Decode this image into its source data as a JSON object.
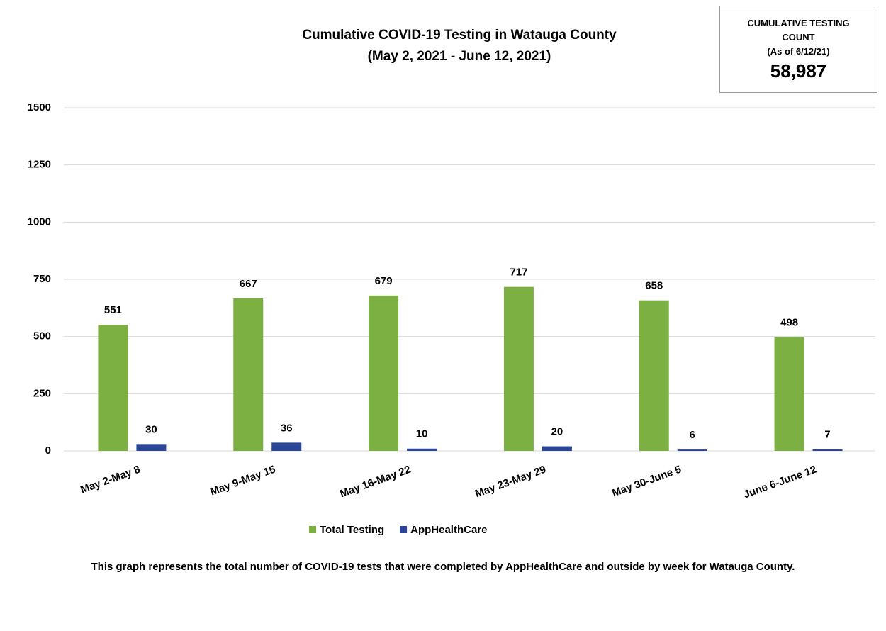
{
  "chart_data": {
    "type": "bar",
    "title": "Cumulative COVID-19 Testing in Watauga County",
    "subtitle": "(May 2, 2021 - June 12, 2021)",
    "summary": {
      "label": "CUMULATIVE TESTING COUNT",
      "date": "(As of 6/12/21)",
      "value": "58,987"
    },
    "footnote": "This graph represents the total number of COVID-19 tests that were completed by AppHealthCare and outside by week for Watauga County.",
    "categories": [
      "May 2-May 8",
      "May 9-May 15",
      "May 16-May 22",
      "May 23-May 29",
      "May 30-June 5",
      "June 6-June 12"
    ],
    "series": [
      {
        "name": "Total Testing",
        "color": "#7cb043",
        "values": [
          551,
          667,
          679,
          717,
          658,
          498
        ]
      },
      {
        "name": "AppHealthCare",
        "color": "#2c4697",
        "values": [
          30,
          36,
          10,
          20,
          6,
          7
        ]
      }
    ],
    "ylim": [
      0,
      1500
    ],
    "yticks": [
      0,
      250,
      500,
      750,
      1000,
      1250,
      1500
    ],
    "grid": true,
    "legend": "bottom"
  }
}
